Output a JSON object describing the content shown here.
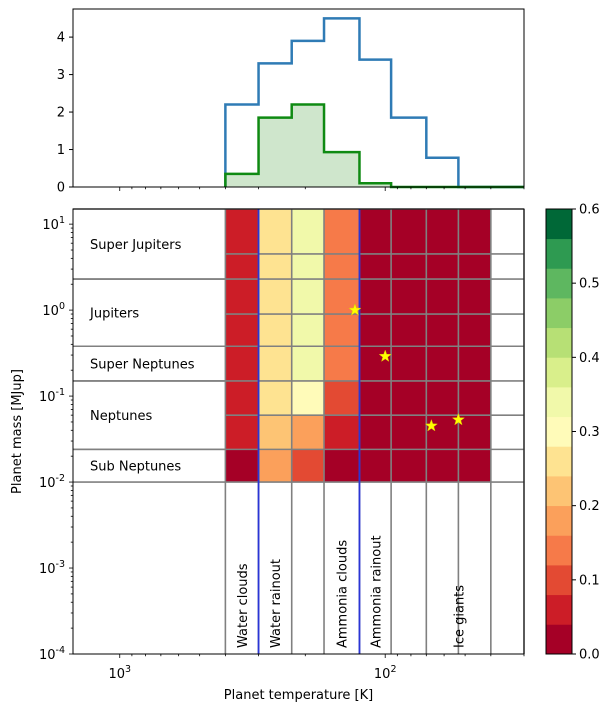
{
  "chart_data": [
    {
      "type": "histogram",
      "panel": "top",
      "yticks": [
        "0",
        "1",
        "2",
        "3",
        "4"
      ],
      "ylim": [
        0,
        4.75
      ],
      "bin_edges_K": [
        400,
        300,
        225,
        170,
        125,
        95,
        70,
        53,
        40,
        30
      ],
      "series": [
        {
          "name": "blue step",
          "color": "#2f7bb5",
          "values": [
            2.2,
            3.3,
            3.9,
            4.5,
            3.4,
            1.85,
            0.78,
            0
          ]
        },
        {
          "name": "green step filled",
          "color": "#0f8a12",
          "fill": "#cfe6cc",
          "values": [
            0.35,
            1.85,
            2.2,
            0.93,
            0.1,
            0,
            0,
            0
          ]
        }
      ]
    },
    {
      "type": "heatmap",
      "panel": "main",
      "xlabel": "Planet temperature [K]",
      "ylabel": "Planet mass [MJup]",
      "x_axis": "log, inverted",
      "xlim_K": [
        1500,
        30
      ],
      "ylim": [
        0.0001,
        15
      ],
      "xticks": [
        {
          "value": 1000,
          "label": "10^3"
        },
        {
          "value": 100,
          "label": "10^2"
        }
      ],
      "yticks": [
        {
          "value": 10,
          "label": "10^1"
        },
        {
          "value": 1,
          "label": "10^0"
        },
        {
          "value": 0.1,
          "label": "10^-1"
        },
        {
          "value": 0.01,
          "label": "10^-2"
        },
        {
          "value": 0.001,
          "label": "10^-3"
        },
        {
          "value": 0.0001,
          "label": "10^-4"
        }
      ],
      "col_edges_K": [
        400,
        300,
        225,
        170,
        125,
        95,
        70,
        53,
        40,
        30
      ],
      "row_edges_MJup": [
        15,
        4.5,
        2.3,
        0.9,
        0.38,
        0.15,
        0.06,
        0.024,
        0.01
      ],
      "cell_values": [
        [
          0.05,
          0.25,
          0.35,
          0.14,
          0,
          0,
          0,
          0
        ],
        [
          0.05,
          0.25,
          0.35,
          0.14,
          0,
          0,
          0,
          0
        ],
        [
          0.05,
          0.25,
          0.35,
          0.14,
          0,
          0,
          0,
          0
        ],
        [
          0.05,
          0.25,
          0.35,
          0.14,
          0,
          0,
          0,
          0
        ],
        [
          0.05,
          0.25,
          0.35,
          0.14,
          0,
          0,
          0,
          0
        ],
        [
          0.05,
          0.25,
          0.3,
          0.1,
          0,
          0,
          0,
          0
        ],
        [
          0.05,
          0.22,
          0.18,
          0.06,
          0,
          0,
          0,
          0
        ],
        [
          0.01,
          0.16,
          0.1,
          0.01,
          0,
          0,
          0,
          0
        ]
      ],
      "mass_regions": [
        {
          "label": "Super Jupiters",
          "range_MJup": [
            2.3,
            15
          ]
        },
        {
          "label": "Jupiters",
          "range_MJup": [
            0.38,
            2.3
          ]
        },
        {
          "label": "Super Neptunes",
          "range_MJup": [
            0.15,
            0.38
          ]
        },
        {
          "label": "Neptunes",
          "range_MJup": [
            0.024,
            0.15
          ]
        },
        {
          "label": "Sub Neptunes",
          "range_MJup": [
            0.01,
            0.024
          ]
        }
      ],
      "temperature_regions": [
        {
          "label": "Water clouds",
          "range_K": [
            400,
            300
          ]
        },
        {
          "label": "Water rainout",
          "range_K": [
            300,
            225
          ]
        },
        {
          "label": "Ammonia clouds",
          "range_K": [
            170,
            125
          ]
        },
        {
          "label": "Ammonia rainout",
          "range_K": [
            125,
            95
          ]
        },
        {
          "label": "Ice giants",
          "range_K": [
            70,
            40
          ]
        }
      ],
      "blue_lines_K": [
        300,
        125
      ],
      "stars": [
        {
          "T": 130,
          "M": 1.0
        },
        {
          "T": 100,
          "M": 0.29
        },
        {
          "T": 67,
          "M": 0.045
        },
        {
          "T": 53,
          "M": 0.053
        }
      ],
      "colorbar": {
        "range": [
          0,
          0.6
        ],
        "ticks": [
          "0.0",
          "0.1",
          "0.2",
          "0.3",
          "0.4",
          "0.5",
          "0.6"
        ],
        "colors": [
          "#a50026",
          "#cc1d27",
          "#e34a33",
          "#f67a49",
          "#fba05b",
          "#fdc474",
          "#fee391",
          "#fffbb9",
          "#f1f9aa",
          "#d9ef8b",
          "#b7e075",
          "#8ccd67",
          "#5eb760",
          "#2e9a51",
          "#006837"
        ]
      }
    }
  ]
}
